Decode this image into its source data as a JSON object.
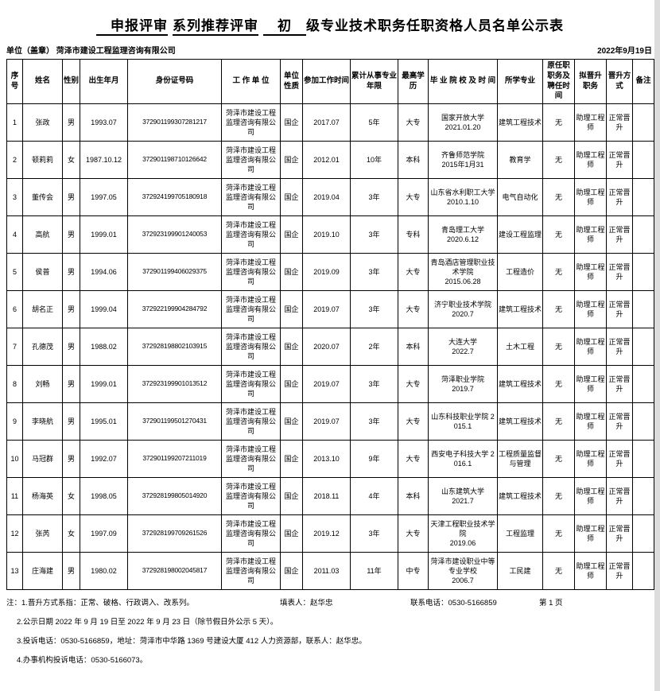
{
  "meta": {
    "title_seg1": "　申报评审",
    "title_seg2": "系列推荐评审",
    "title_seg3": "　初　",
    "title_seg4": "级专业技术职务任职资格人员名单公示表",
    "unit_label": "单位（盖章）",
    "unit_name": "菏泽市建设工程监理咨询有限公司",
    "date": "2022年9月19日"
  },
  "table": {
    "headers": [
      "序号",
      "姓名",
      "性别",
      "出生年月",
      "身份证号码",
      "工 作 单 位",
      "单位性质",
      "参加工作时间",
      "累计从事专业年限",
      "最高学历",
      "毕 业 院 校 及 时 间",
      "所学专业",
      "原任职职务及聘任时间",
      "拟晋升职务",
      "晋升方式",
      "备注"
    ],
    "rows": [
      [
        "1",
        "张政",
        "男",
        "1993.07",
        "372901199307281217",
        "菏泽市建设工程监理咨询有限公司",
        "国企",
        "2017.07",
        "5年",
        "大专",
        "国家开放大学\n2021.01.20",
        "建筑工程技术",
        "无",
        "助理工程师",
        "正常晋升",
        ""
      ],
      [
        "2",
        "顿莉莉",
        "女",
        "1987.10.12",
        "372901198710126642",
        "菏泽市建设工程监理咨询有限公司",
        "国企",
        "2012.01",
        "10年",
        "本科",
        "齐鲁师范学院\n2015年1月31",
        "教育学",
        "无",
        "助理工程师",
        "正常晋升",
        ""
      ],
      [
        "3",
        "董传会",
        "男",
        "1997.05",
        "372924199705180918",
        "菏泽市建设工程监理咨询有限公司",
        "国企",
        "2019.04",
        "3年",
        "大专",
        "山东省水利职工大学\n2010.1.10",
        "电气自动化",
        "无",
        "助理工程师",
        "正常晋升",
        ""
      ],
      [
        "4",
        "高航",
        "男",
        "1999.01",
        "372923199901240053",
        "菏泽市建设工程监理咨询有限公司",
        "国企",
        "2019.10",
        "3年",
        "专科",
        "青岛理工大学\n2020.6.12",
        "建设工程监理",
        "无",
        "助理工程师",
        "正常晋升",
        ""
      ],
      [
        "5",
        "侯普",
        "男",
        "1994.06",
        "372901199406029375",
        "菏泽市建设工程监理咨询有限公司",
        "国企",
        "2019.09",
        "3年",
        "大专",
        "青岛酒店管理职业技术学院\n2015.06.28",
        "工程造价",
        "无",
        "助理工程师",
        "正常晋升",
        ""
      ],
      [
        "6",
        "胡名正",
        "男",
        "1999.04",
        "372922199904284792",
        "菏泽市建设工程监理咨询有限公司",
        "国企",
        "2019.07",
        "3年",
        "大专",
        "济宁职业技术学院\n2020.7",
        "建筑工程技术",
        "无",
        "助理工程师",
        "正常晋升",
        ""
      ],
      [
        "7",
        "孔德茂",
        "男",
        "1988.02",
        "372928198802103915",
        "菏泽市建设工程监理咨询有限公司",
        "国企",
        "2020.07",
        "2年",
        "本科",
        "大连大学\n2022.7",
        "土木工程",
        "无",
        "助理工程师",
        "正常晋升",
        ""
      ],
      [
        "8",
        "刘畅",
        "男",
        "1999.01",
        "372923199901013512",
        "菏泽市建设工程监理咨询有限公司",
        "国企",
        "2019.07",
        "3年",
        "大专",
        "菏泽职业学院\n2019.7",
        "建筑工程技术",
        "无",
        "助理工程师",
        "正常晋升",
        ""
      ],
      [
        "9",
        "李晓航",
        "男",
        "1995.01",
        "372901199501270431",
        "菏泽市建设工程监理咨询有限公司",
        "国企",
        "2019.07",
        "3年",
        "大专",
        "山东科技职业学院 2015.1",
        "建筑工程技术",
        "无",
        "助理工程师",
        "正常晋升",
        ""
      ],
      [
        "10",
        "马冠群",
        "男",
        "1992.07",
        "372901199207211019",
        "菏泽市建设工程监理咨询有限公司",
        "国企",
        "2013.10",
        "9年",
        "大专",
        "西安电子科技大学 2016.1",
        "工程质量监督与管理",
        "无",
        "助理工程师",
        "正常晋升",
        ""
      ],
      [
        "11",
        "杨海英",
        "女",
        "1998.05",
        "372928199805014920",
        "菏泽市建设工程监理咨询有限公司",
        "国企",
        "2018.11",
        "4年",
        "本科",
        "山东建筑大学\n2021.7",
        "建筑工程技术",
        "无",
        "助理工程师",
        "正常晋升",
        ""
      ],
      [
        "12",
        "张芮",
        "女",
        "1997.09",
        "372928199709261526",
        "菏泽市建设工程监理咨询有限公司",
        "国企",
        "2019.12",
        "3年",
        "大专",
        "天津工程职业技术学院\n2019.06",
        "工程监理",
        "无",
        "助理工程师",
        "正常晋升",
        ""
      ],
      [
        "13",
        "庄海建",
        "男",
        "1980.02",
        "372928198002045817",
        "菏泽市建设工程监理咨询有限公司",
        "国企",
        "2011.03",
        "11年",
        "中专",
        "菏泽市建设职业中等专业学校\n2006.7",
        "工民建",
        "无",
        "助理工程师",
        "正常晋升",
        ""
      ]
    ]
  },
  "footer": {
    "note1": "注：1.晋升方式系指：正常、破格、行政调入、改系列。",
    "filler": "填表人：赵华忠",
    "phone": "联系电话：0530-5166859",
    "page": "第 1 页",
    "note2": "2.公示日期 2022 年 9 月 19 日至 2022 年 9 月 23 日（除节假日外公示 5 天）。",
    "note3": "3.投诉电话：0530-5166859，地址：菏泽市中华路 1369 号建设大厦 412 人力资源部，联系人：赵华忠。",
    "note4": "4.办事机构投诉电话：0530-5166073。"
  }
}
